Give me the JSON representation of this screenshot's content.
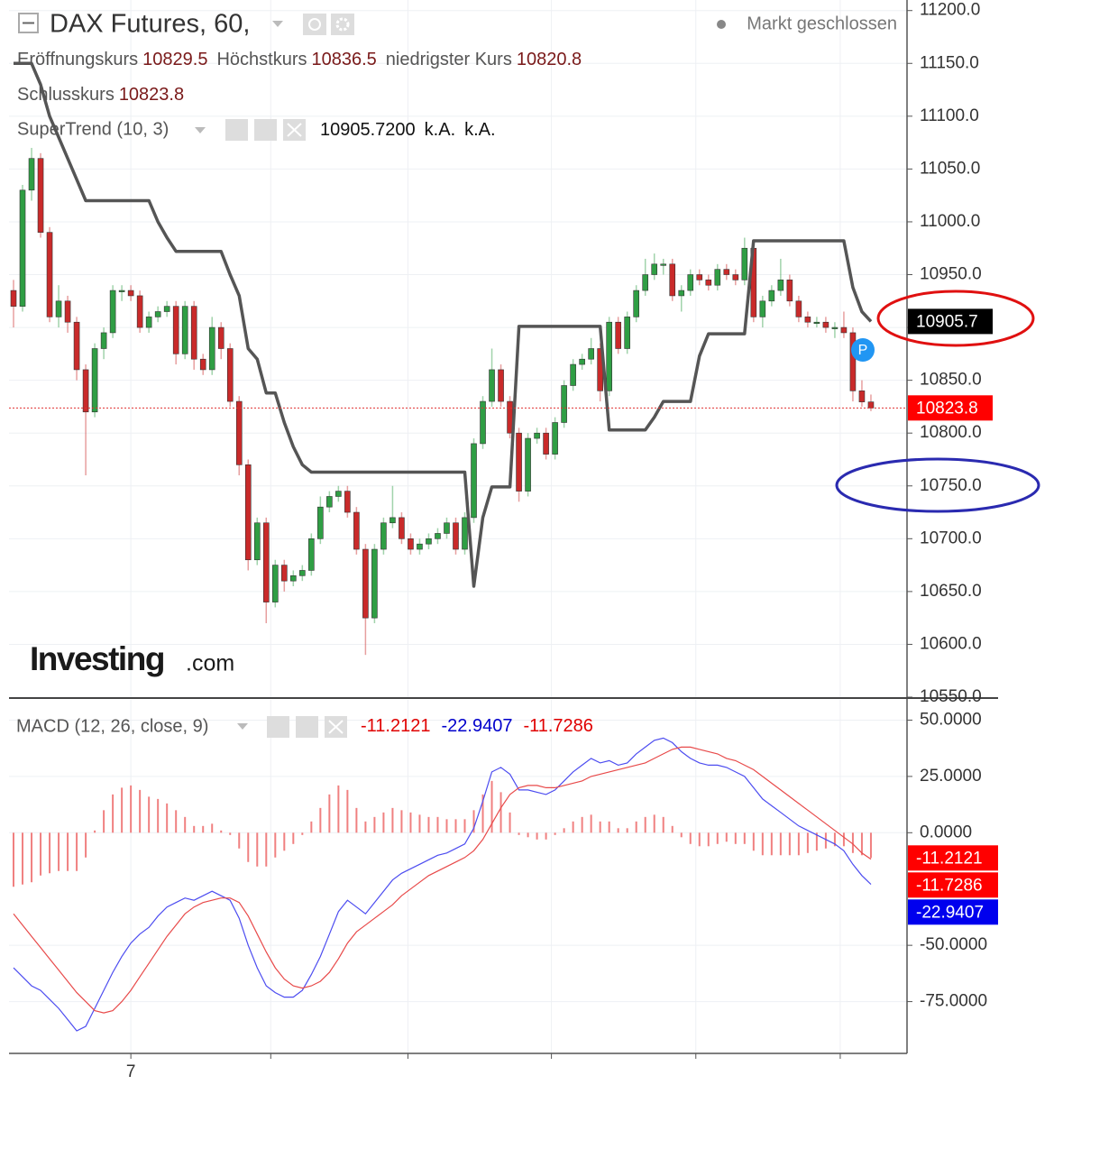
{
  "chart_data": [
    {
      "type": "candlestick",
      "title": "DAX Futures, 60,",
      "status": "Markt geschlossen",
      "ohlc_labels": [
        "Eröffnungskurs",
        "Höchstkurs",
        "niedrigster Kurs",
        "Schlusskurs"
      ],
      "up_color": "#2f9e44",
      "down_color": "#c92a2a",
      "close_line_color": "#e03131",
      "candles": [
        [
          10935,
          10945,
          10900,
          10920
        ],
        [
          10920,
          11035,
          10915,
          11030
        ],
        [
          11030,
          11070,
          11020,
          11060
        ],
        [
          11060,
          11065,
          10985,
          10990
        ],
        [
          10990,
          10995,
          10905,
          10910
        ],
        [
          10910,
          10940,
          10900,
          10925
        ],
        [
          10925,
          10930,
          10895,
          10905
        ],
        [
          10905,
          10910,
          10850,
          10860
        ],
        [
          10860,
          10865,
          10760,
          10820
        ],
        [
          10820,
          10885,
          10815,
          10880
        ],
        [
          10880,
          10900,
          10870,
          10895
        ],
        [
          10895,
          10940,
          10890,
          10935
        ],
        [
          10935,
          10940,
          10925,
          10935
        ],
        [
          10935,
          10940,
          10925,
          10930
        ],
        [
          10930,
          10935,
          10895,
          10900
        ],
        [
          10900,
          10915,
          10895,
          10910
        ],
        [
          10910,
          10920,
          10905,
          10915
        ],
        [
          10915,
          10925,
          10910,
          10920
        ],
        [
          10920,
          10925,
          10865,
          10875
        ],
        [
          10875,
          10925,
          10870,
          10920
        ],
        [
          10920,
          10925,
          10860,
          10870
        ],
        [
          10870,
          10875,
          10855,
          10860
        ],
        [
          10860,
          10910,
          10855,
          10900
        ],
        [
          10900,
          10905,
          10870,
          10880
        ],
        [
          10880,
          10885,
          10825,
          10830
        ],
        [
          10830,
          10835,
          10760,
          10770
        ],
        [
          10770,
          10775,
          10670,
          10680
        ],
        [
          10680,
          10720,
          10675,
          10715
        ],
        [
          10715,
          10720,
          10620,
          10640
        ],
        [
          10640,
          10680,
          10635,
          10675
        ],
        [
          10675,
          10680,
          10650,
          10660
        ],
        [
          10660,
          10670,
          10655,
          10665
        ],
        [
          10665,
          10675,
          10660,
          10670
        ],
        [
          10670,
          10705,
          10665,
          10700
        ],
        [
          10700,
          10740,
          10695,
          10730
        ],
        [
          10730,
          10745,
          10725,
          10740
        ],
        [
          10740,
          10750,
          10735,
          10745
        ],
        [
          10745,
          10750,
          10720,
          10725
        ],
        [
          10725,
          10730,
          10685,
          10690
        ],
        [
          10690,
          10695,
          10590,
          10625
        ],
        [
          10625,
          10695,
          10620,
          10690
        ],
        [
          10690,
          10720,
          10685,
          10715
        ],
        [
          10715,
          10750,
          10710,
          10720
        ],
        [
          10720,
          10725,
          10695,
          10700
        ],
        [
          10700,
          10705,
          10685,
          10690
        ],
        [
          10690,
          10700,
          10685,
          10695
        ],
        [
          10695,
          10705,
          10690,
          10700
        ],
        [
          10700,
          10710,
          10695,
          10705
        ],
        [
          10705,
          10720,
          10700,
          10715
        ],
        [
          10715,
          10720,
          10685,
          10690
        ],
        [
          10690,
          10725,
          10685,
          10720
        ],
        [
          10720,
          10795,
          10715,
          10790
        ],
        [
          10790,
          10835,
          10785,
          10830
        ],
        [
          10830,
          10880,
          10825,
          10860
        ],
        [
          10860,
          10865,
          10825,
          10830
        ],
        [
          10830,
          10835,
          10795,
          10800
        ],
        [
          10800,
          10805,
          10735,
          10745
        ],
        [
          10745,
          10800,
          10740,
          10795
        ],
        [
          10795,
          10805,
          10790,
          10800
        ],
        [
          10800,
          10805,
          10775,
          10780
        ],
        [
          10780,
          10815,
          10775,
          10810
        ],
        [
          10810,
          10850,
          10805,
          10845
        ],
        [
          10845,
          10870,
          10840,
          10865
        ],
        [
          10865,
          10875,
          10860,
          10870
        ],
        [
          10870,
          10890,
          10865,
          10880
        ],
        [
          10880,
          10885,
          10830,
          10840
        ],
        [
          10840,
          10910,
          10835,
          10905
        ],
        [
          10905,
          10910,
          10875,
          10880
        ],
        [
          10880,
          10915,
          10875,
          10910
        ],
        [
          10910,
          10940,
          10905,
          10935
        ],
        [
          10935,
          10965,
          10930,
          10950
        ],
        [
          10950,
          10970,
          10945,
          10960
        ],
        [
          10960,
          10965,
          10950,
          10960
        ],
        [
          10960,
          10965,
          10925,
          10930
        ],
        [
          10930,
          10940,
          10915,
          10935
        ],
        [
          10935,
          10955,
          10930,
          10950
        ],
        [
          10950,
          10955,
          10940,
          10945
        ],
        [
          10945,
          10950,
          10935,
          10940
        ],
        [
          10940,
          10960,
          10935,
          10955
        ],
        [
          10955,
          10960,
          10945,
          10950
        ],
        [
          10950,
          10955,
          10940,
          10945
        ],
        [
          10945,
          10985,
          10940,
          10975
        ],
        [
          10975,
          10980,
          10905,
          10910
        ],
        [
          10910,
          10930,
          10900,
          10925
        ],
        [
          10925,
          10940,
          10920,
          10935
        ],
        [
          10935,
          10965,
          10930,
          10945
        ],
        [
          10945,
          10950,
          10920,
          10925
        ],
        [
          10925,
          10930,
          10905,
          10910
        ],
        [
          10910,
          10915,
          10900,
          10905
        ],
        [
          10905,
          10910,
          10900,
          10905
        ],
        [
          10905,
          10910,
          10895,
          10900
        ],
        [
          10900,
          10905,
          10890,
          10900
        ],
        [
          10900,
          10915,
          10890,
          10895
        ],
        [
          10895,
          10900,
          10830,
          10840
        ],
        [
          10840,
          10850,
          10825,
          10829.5
        ],
        [
          10829.5,
          10836.5,
          10820.8,
          10823.8
        ]
      ],
      "series": [
        {
          "name": "SuperTrend (10, 3)",
          "color": "#555555",
          "values": [
            11150,
            11150,
            11150,
            11130,
            11100,
            11080,
            11060,
            11040,
            11020,
            11020,
            11020,
            11020,
            11020,
            11020,
            11020,
            11020,
            11000,
            10985,
            10972,
            10972,
            10972,
            10972,
            10972,
            10972,
            10950,
            10930,
            10880,
            10870,
            10838,
            10838,
            10810,
            10787,
            10770,
            10763,
            10763,
            10763,
            10763,
            10763,
            10763,
            10763,
            10763,
            10763,
            10763,
            10763,
            10763,
            10763,
            10763,
            10763,
            10763,
            10763,
            10763,
            10655,
            10720,
            10749,
            10749,
            10749,
            10901,
            10901,
            10901,
            10901,
            10901,
            10901,
            10901,
            10901,
            10901,
            10901,
            10803,
            10803,
            10803,
            10803,
            10803,
            10815,
            10830,
            10830,
            10830,
            10830,
            10873,
            10894,
            10894,
            10894,
            10894,
            10894,
            10982,
            10982,
            10982,
            10982,
            10982,
            10982,
            10982,
            10982,
            10982,
            10982,
            10982,
            10938,
            10915,
            10905.7
          ],
          "last_label": "10905.7200",
          "last_axis_label": "10905.7",
          "extra_labels": [
            "k.A.",
            "k.A."
          ]
        }
      ],
      "marker_label": "P",
      "watermark": [
        "Investing",
        ".com"
      ],
      "xlim": [
        -0.5,
        99
      ],
      "xticks": [
        {
          "value": 13,
          "label": "7"
        },
        {
          "value": 28.5,
          "label": null
        },
        {
          "value": 43.7,
          "label": null
        },
        {
          "value": 59.6,
          "label": null
        },
        {
          "value": 75.6,
          "label": null
        },
        {
          "value": 91.6,
          "label": null
        }
      ],
      "ylim": [
        10550,
        11210
      ],
      "yticks": [
        {
          "value": 11200,
          "label": "11200.0"
        },
        {
          "value": 11150,
          "label": "11150.0"
        },
        {
          "value": 11100,
          "label": "11100.0"
        },
        {
          "value": 11050,
          "label": "11050.0"
        },
        {
          "value": 11000,
          "label": "11000.0"
        },
        {
          "value": 10950,
          "label": "10950.0"
        },
        {
          "value": 10900,
          "label": "10900.0"
        },
        {
          "value": 10850,
          "label": "10850.0"
        },
        {
          "value": 10800,
          "label": "10800.0"
        },
        {
          "value": 10750,
          "label": "10750.0"
        },
        {
          "value": 10700,
          "label": "10700.0"
        },
        {
          "value": 10650,
          "label": "10650.0"
        },
        {
          "value": 10600,
          "label": "10600.0"
        },
        {
          "value": 10550,
          "label": "10550.0"
        }
      ],
      "grid": true
    },
    {
      "type": "macd",
      "title": "MACD (12, 26, close, 9)",
      "histogram": {
        "color": "#f08080",
        "values": [
          -24,
          -23,
          -22,
          -19,
          -18,
          -17,
          -17,
          -17,
          -11,
          1,
          10,
          17,
          20,
          21,
          19,
          16,
          15,
          13,
          10,
          7,
          3,
          3,
          4,
          1,
          -1,
          -7,
          -13,
          -15,
          -15,
          -11,
          -8,
          -5,
          -1,
          5,
          11,
          17,
          21,
          19,
          11,
          5,
          7,
          9,
          11,
          10,
          9,
          8,
          7,
          7,
          6,
          6,
          6,
          10,
          17,
          23,
          18,
          9,
          -1,
          -2,
          -3,
          -3,
          -1,
          2,
          5,
          7,
          8,
          5,
          5,
          2,
          2,
          5,
          7,
          8,
          7,
          3,
          -2,
          -5,
          -6,
          -6,
          -5,
          -4,
          -5,
          -5,
          -8,
          -10,
          -10,
          -10,
          -10,
          -10,
          -9,
          -8,
          -7,
          -6,
          -6,
          -9,
          -10,
          -11.2121
        ]
      },
      "series": [
        {
          "color": "#4c4cf0",
          "values": [
            -60,
            -64,
            -68,
            -70,
            -74,
            -78,
            -83,
            -88,
            -86,
            -78,
            -70,
            -62,
            -55,
            -49,
            -45,
            -42,
            -37,
            -33,
            -31,
            -29,
            -30,
            -28,
            -26,
            -28,
            -30,
            -38,
            -50,
            -60,
            -68,
            -71,
            -73,
            -73,
            -70,
            -63,
            -55,
            -45,
            -35,
            -30,
            -33,
            -36,
            -31,
            -26,
            -21,
            -18,
            -16,
            -14,
            -12,
            -10,
            -9,
            -7,
            -5,
            2,
            14,
            27,
            29,
            26,
            19,
            19,
            18,
            17,
            19,
            23,
            27,
            30,
            33,
            31,
            32,
            30,
            31,
            35,
            38,
            41,
            42,
            40,
            36,
            33,
            31,
            30,
            30,
            29,
            27,
            25,
            20,
            15,
            12,
            9,
            6,
            3,
            1,
            -1,
            -3,
            -5,
            -8,
            -14,
            -19,
            -22.9407
          ]
        },
        {
          "color": "#e84a4a",
          "values": [
            -36,
            -41,
            -46,
            -51,
            -56,
            -61,
            -66,
            -71,
            -75,
            -79,
            -80,
            -79,
            -75,
            -70,
            -64,
            -58,
            -52,
            -46,
            -41,
            -36,
            -33,
            -31,
            -30,
            -29,
            -29,
            -31,
            -37,
            -45,
            -53,
            -60,
            -65,
            -68,
            -69,
            -68,
            -66,
            -62,
            -56,
            -49,
            -44,
            -41,
            -38,
            -35,
            -32,
            -28,
            -25,
            -22,
            -19,
            -17,
            -15,
            -13,
            -11,
            -8,
            -3,
            4,
            11,
            17,
            20,
            21,
            21,
            20,
            20,
            21,
            22,
            23,
            25,
            26,
            27,
            28,
            29,
            30,
            31,
            33,
            35,
            37,
            38,
            38,
            37,
            36,
            35,
            33,
            32,
            30,
            28,
            25,
            22,
            19,
            16,
            13,
            10,
            7,
            4,
            1,
            -2,
            -5,
            -9,
            -11.7286
          ]
        }
      ],
      "xlim": [
        -0.5,
        99
      ],
      "ylim": [
        -98,
        59
      ],
      "yticks": [
        {
          "value": 50,
          "label": "50.0000"
        },
        {
          "value": 25,
          "label": "25.0000"
        },
        {
          "value": 0,
          "label": "0.0000"
        },
        {
          "value": -50,
          "label": "-50.0000"
        },
        {
          "value": -75,
          "label": "-75.0000"
        }
      ],
      "grid": true
    }
  ]
}
